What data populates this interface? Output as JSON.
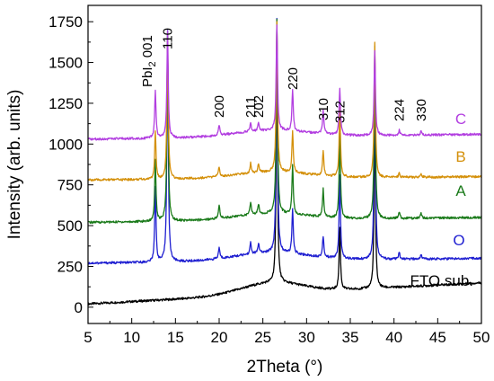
{
  "chart_data": {
    "type": "line",
    "title": "",
    "xlabel": "2Theta (°)",
    "ylabel": "Intensity (arb. units)",
    "xlim": [
      5,
      50
    ],
    "ylim": [
      -100,
      1850
    ],
    "x_ticks": [
      5,
      10,
      15,
      20,
      25,
      30,
      35,
      40,
      45,
      50
    ],
    "y_ticks": [
      0,
      250,
      500,
      750,
      1000,
      1250,
      1500,
      1750
    ],
    "grid": false,
    "peak_positions": [
      12.7,
      14.1,
      20.0,
      23.6,
      24.5,
      26.6,
      28.4,
      31.9,
      33.8,
      37.8,
      40.6,
      43.1
    ],
    "peak_labels": [
      {
        "text": "PbI",
        "sub": "2",
        "tail": " 001",
        "x": 12.7,
        "color": "#b22222"
      },
      {
        "text": "110",
        "x": 14.1
      },
      {
        "text": "200",
        "x": 20.0
      },
      {
        "text": "211",
        "x": 23.6
      },
      {
        "text": "202",
        "x": 24.5
      },
      {
        "text": "220",
        "x": 28.4
      },
      {
        "text": "310",
        "x": 31.9
      },
      {
        "text": "312",
        "x": 33.8
      },
      {
        "text": "224",
        "x": 40.6
      },
      {
        "text": "330",
        "x": 43.1
      }
    ],
    "series": [
      {
        "name": "FTO sub.",
        "color": "#000000",
        "baseline_start": 20,
        "baseline_end": 150,
        "hump": {
          "center": 26,
          "height": 70,
          "width": 5
        },
        "peaks": [
          {
            "x": 26.6,
            "height": 1400
          },
          {
            "x": 33.8,
            "height": 380
          },
          {
            "x": 37.8,
            "height": 1080
          }
        ]
      },
      {
        "name": "O",
        "color": "#1f1fd1",
        "baseline_start": 270,
        "baseline_end": 300,
        "hump": {
          "center": 26,
          "height": 50,
          "width": 6
        },
        "peaks": [
          {
            "x": 12.7,
            "height": 460
          },
          {
            "x": 14.1,
            "height": 1420
          },
          {
            "x": 20.0,
            "height": 70
          },
          {
            "x": 23.6,
            "height": 70
          },
          {
            "x": 24.5,
            "height": 60
          },
          {
            "x": 26.6,
            "height": 1430
          },
          {
            "x": 28.4,
            "height": 270
          },
          {
            "x": 31.9,
            "height": 130
          },
          {
            "x": 33.8,
            "height": 510
          },
          {
            "x": 37.8,
            "height": 1280
          },
          {
            "x": 40.6,
            "height": 40
          },
          {
            "x": 43.1,
            "height": 30
          }
        ]
      },
      {
        "name": "A",
        "color": "#1a7a1a",
        "baseline_start": 520,
        "baseline_end": 550,
        "hump": {
          "center": 26,
          "height": 40,
          "width": 6
        },
        "peaks": [
          {
            "x": 12.7,
            "height": 370
          },
          {
            "x": 14.1,
            "height": 1150
          },
          {
            "x": 20.0,
            "height": 80
          },
          {
            "x": 23.6,
            "height": 80
          },
          {
            "x": 24.5,
            "height": 60
          },
          {
            "x": 26.6,
            "height": 1190
          },
          {
            "x": 28.4,
            "height": 300
          },
          {
            "x": 31.9,
            "height": 170
          },
          {
            "x": 33.8,
            "height": 520
          },
          {
            "x": 37.8,
            "height": 1050
          },
          {
            "x": 40.6,
            "height": 40
          },
          {
            "x": 43.1,
            "height": 30
          }
        ]
      },
      {
        "name": "B",
        "color": "#d4900a",
        "baseline_start": 780,
        "baseline_end": 800,
        "hump": {
          "center": 26,
          "height": 40,
          "width": 6
        },
        "peaks": [
          {
            "x": 12.7,
            "height": 290
          },
          {
            "x": 14.1,
            "height": 860
          },
          {
            "x": 20.0,
            "height": 60
          },
          {
            "x": 23.6,
            "height": 60
          },
          {
            "x": 24.5,
            "height": 50
          },
          {
            "x": 26.6,
            "height": 920
          },
          {
            "x": 28.4,
            "height": 250
          },
          {
            "x": 31.9,
            "height": 150
          },
          {
            "x": 33.8,
            "height": 420
          },
          {
            "x": 37.8,
            "height": 830
          },
          {
            "x": 40.6,
            "height": 30
          },
          {
            "x": 43.1,
            "height": 25
          }
        ]
      },
      {
        "name": "C",
        "color": "#b23ee0",
        "baseline_start": 1030,
        "baseline_end": 1060,
        "hump": {
          "center": 26,
          "height": 40,
          "width": 6
        },
        "peaks": [
          {
            "x": 12.7,
            "height": 290
          },
          {
            "x": 14.1,
            "height": 650
          },
          {
            "x": 20.0,
            "height": 60
          },
          {
            "x": 23.6,
            "height": 60
          },
          {
            "x": 24.5,
            "height": 50
          },
          {
            "x": 26.6,
            "height": 650
          },
          {
            "x": 28.4,
            "height": 250
          },
          {
            "x": 31.9,
            "height": 150
          },
          {
            "x": 33.8,
            "height": 290
          },
          {
            "x": 37.8,
            "height": 520
          },
          {
            "x": 40.6,
            "height": 30
          },
          {
            "x": 43.1,
            "height": 25
          }
        ]
      }
    ]
  }
}
